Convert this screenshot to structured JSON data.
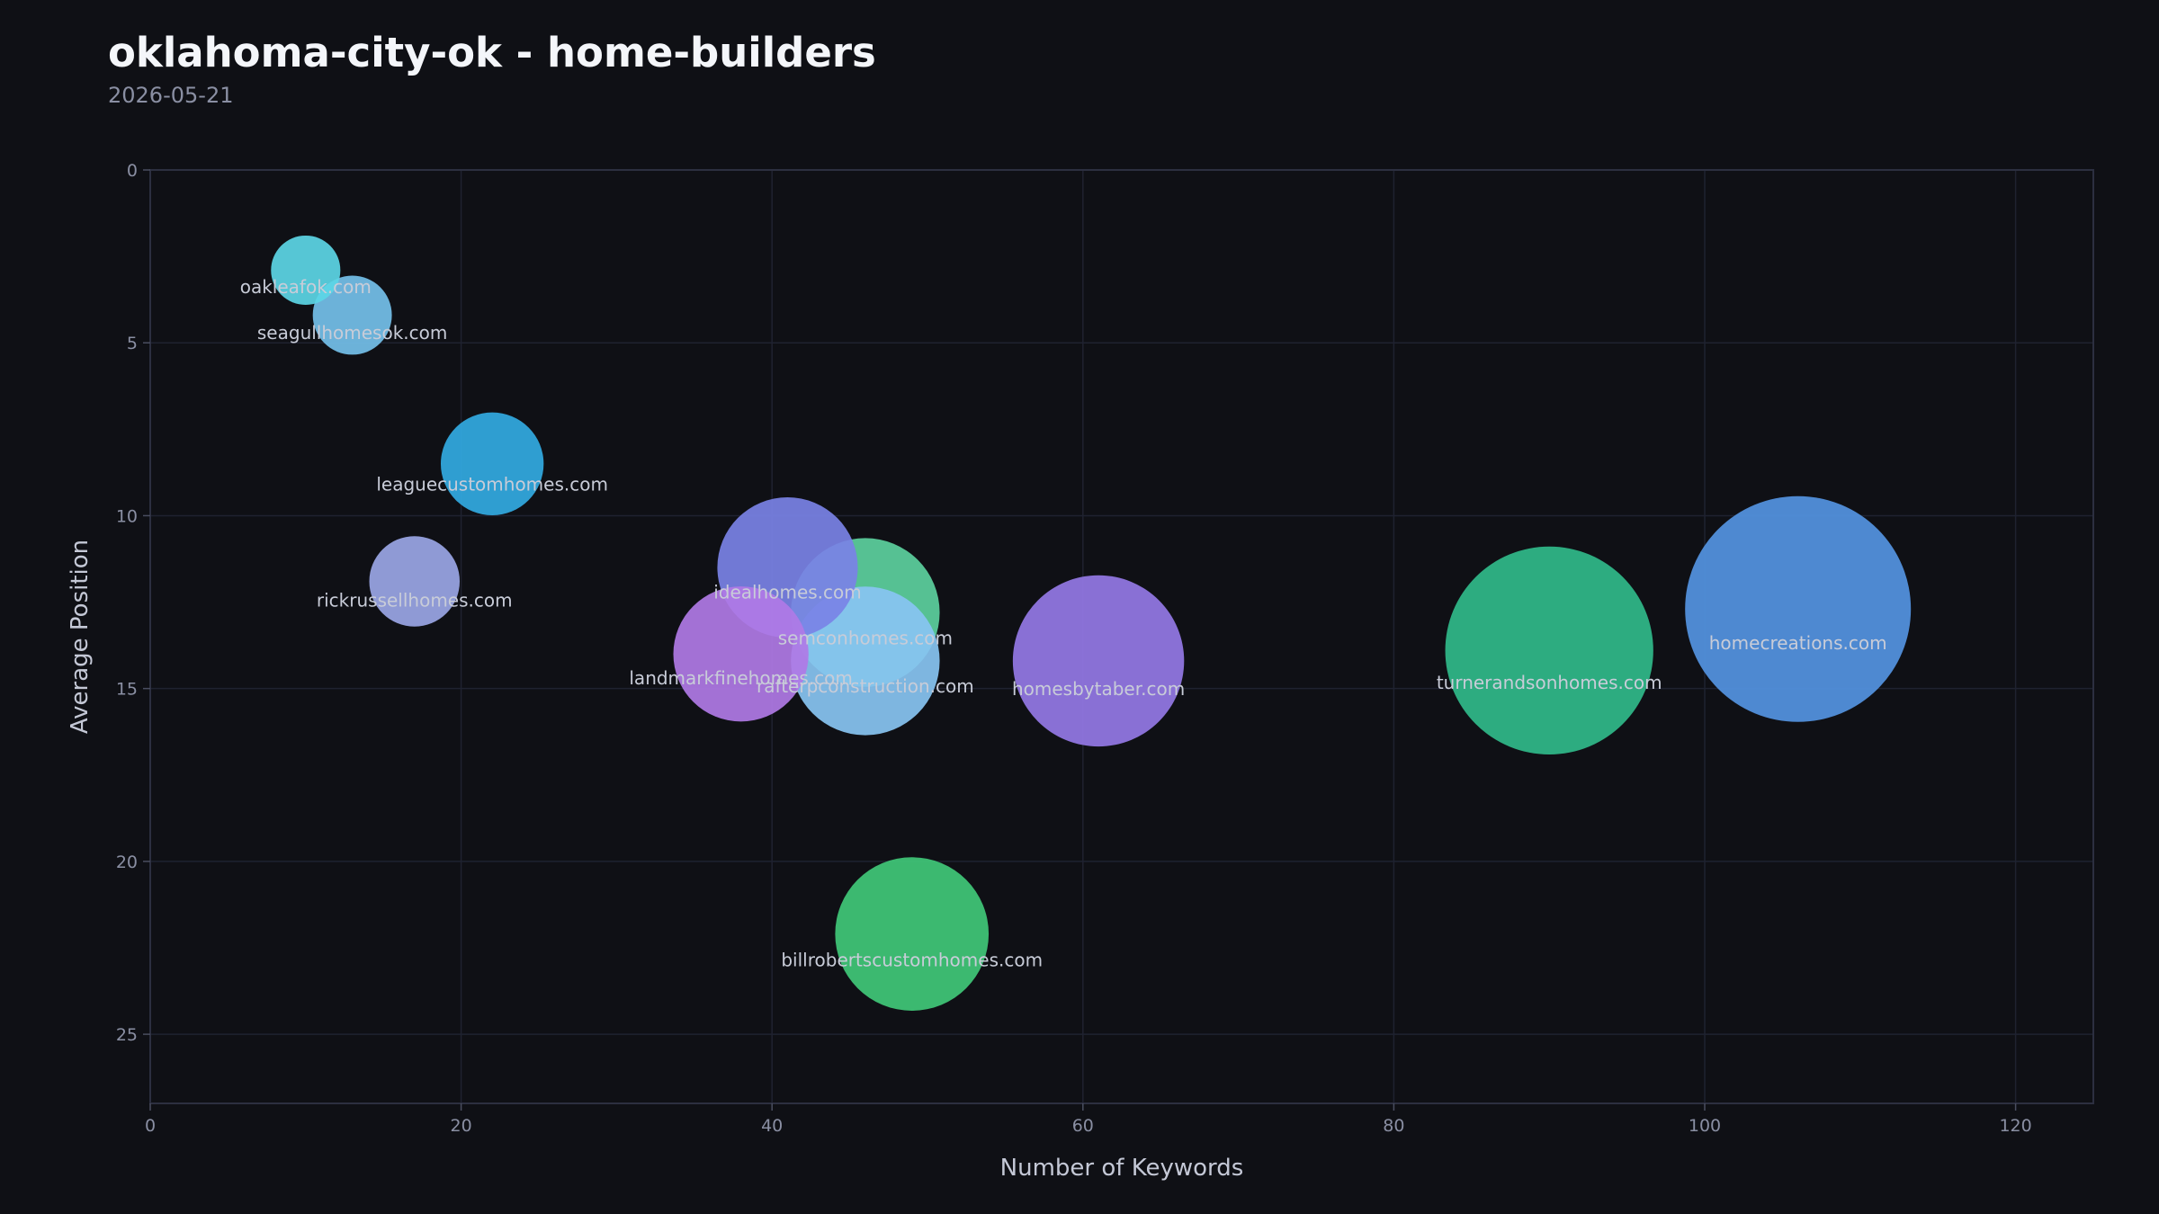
{
  "header": {
    "title": "oklahoma-city-ok - home-builders",
    "subtitle": "2026-05-21"
  },
  "chart_data": {
    "type": "scatter",
    "title": "oklahoma-city-ok - home-builders",
    "subtitle": "2026-05-21",
    "xlabel": "Number of Keywords",
    "ylabel": "Average Position",
    "xlim": [
      0,
      125
    ],
    "ylim": [
      27,
      0
    ],
    "y_inverted": true,
    "x_ticks": [
      0,
      20,
      40,
      60,
      80,
      100,
      120
    ],
    "y_ticks": [
      0,
      5,
      10,
      15,
      20,
      25
    ],
    "grid": true,
    "legend": "none",
    "bubble_size_encodes": "Number of Keywords",
    "points": [
      {
        "label": "oakleafok.com",
        "x": 10,
        "y": 2.9,
        "color": "#5cd6e6"
      },
      {
        "label": "seagullhomesok.com",
        "x": 13,
        "y": 4.2,
        "color": "#74c0ea"
      },
      {
        "label": "leaguecustomhomes.com",
        "x": 22,
        "y": 8.5,
        "color": "#32aae2"
      },
      {
        "label": "rickrussellhomes.com",
        "x": 17,
        "y": 11.9,
        "color": "#9aa6e6"
      },
      {
        "label": "idealhomes.com",
        "x": 41,
        "y": 11.5,
        "color": "#7a82e6"
      },
      {
        "label": "semconhomes.com",
        "x": 46,
        "y": 12.8,
        "color": "#5cd09e"
      },
      {
        "label": "landmarkfinehomes.com",
        "x": 38,
        "y": 14.0,
        "color": "#b07ae6"
      },
      {
        "label": "rafterpconstruction.com",
        "x": 46,
        "y": 14.2,
        "color": "#88c4f2"
      },
      {
        "label": "homesbytaber.com",
        "x": 61,
        "y": 14.2,
        "color": "#9478e6"
      },
      {
        "label": "turnerandsonhomes.com",
        "x": 90,
        "y": 13.9,
        "color": "#30ba8a"
      },
      {
        "label": "homecreations.com",
        "x": 106,
        "y": 12.7,
        "color": "#5494e2"
      },
      {
        "label": "billrobertscustomhomes.com",
        "x": 49,
        "y": 22.1,
        "color": "#40c878"
      }
    ]
  }
}
